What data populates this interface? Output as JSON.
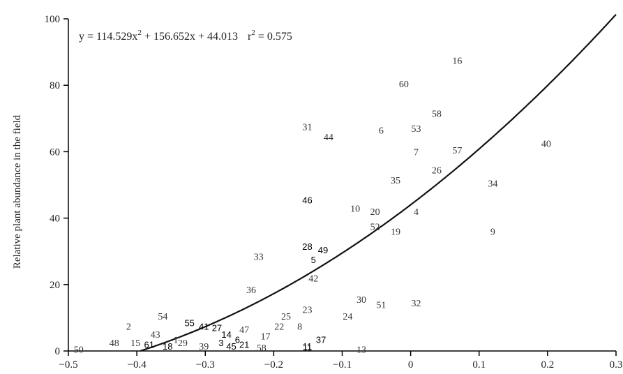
{
  "chart_data": {
    "type": "scatter",
    "title": "",
    "xlabel": "",
    "ylabel": "Relative plant abundance in the field",
    "xlim": [
      -0.5,
      0.3
    ],
    "ylim": [
      0,
      100
    ],
    "x_ticks": [
      -0.5,
      -0.4,
      -0.3,
      -0.2,
      -0.1,
      0,
      0.1,
      0.2,
      0.3
    ],
    "x_tick_labels": [
      "−0.5",
      "−0.4",
      "−0.3",
      "−0.2",
      "−0.1",
      "0",
      "0.1",
      "0.2",
      "0.3"
    ],
    "y_ticks": [
      0,
      20,
      40,
      60,
      80,
      100
    ],
    "y_tick_labels": [
      "0",
      "20",
      "40",
      "60",
      "80",
      "100"
    ],
    "grid": false,
    "marker": "point labels (numbers)",
    "fit": {
      "type": "quadratic",
      "coefficients": [
        114.529,
        156.652,
        44.013
      ],
      "equation_text": "y = 114.529x",
      "equation_sup": "2",
      "equation_rest": " + 156.652x + 44.013",
      "r2_label": "r",
      "r2_sup": "2",
      "r2_value": " = 0.575"
    },
    "points": [
      {
        "label": "16",
        "x": 0.068,
        "y": 87.5
      },
      {
        "label": "60",
        "x": -0.01,
        "y": 80.5
      },
      {
        "label": "58",
        "x": 0.038,
        "y": 71.5
      },
      {
        "label": "31",
        "x": -0.151,
        "y": 67.5
      },
      {
        "label": "6",
        "x": -0.043,
        "y": 66.5
      },
      {
        "label": "53",
        "x": 0.008,
        "y": 67.0
      },
      {
        "label": "44",
        "x": -0.12,
        "y": 64.5
      },
      {
        "label": "40",
        "x": 0.198,
        "y": 62.5
      },
      {
        "label": "7",
        "x": 0.008,
        "y": 60.0
      },
      {
        "label": "57",
        "x": 0.068,
        "y": 60.5
      },
      {
        "label": "26",
        "x": 0.038,
        "y": 54.5
      },
      {
        "label": "35",
        "x": -0.022,
        "y": 51.5
      },
      {
        "label": "34",
        "x": 0.12,
        "y": 50.5
      },
      {
        "label": "46",
        "x": -0.151,
        "y": 45.5,
        "style": "sans"
      },
      {
        "label": "10",
        "x": -0.081,
        "y": 43.0
      },
      {
        "label": "20",
        "x": -0.052,
        "y": 42.0
      },
      {
        "label": "4",
        "x": 0.008,
        "y": 42.0
      },
      {
        "label": "52",
        "x": -0.052,
        "y": 37.5
      },
      {
        "label": "19",
        "x": -0.022,
        "y": 36.0
      },
      {
        "label": "9",
        "x": 0.12,
        "y": 36.0
      },
      {
        "label": "28",
        "x": -0.151,
        "y": 31.5,
        "style": "sans"
      },
      {
        "label": "49",
        "x": -0.128,
        "y": 30.5,
        "style": "sans"
      },
      {
        "label": "33",
        "x": -0.222,
        "y": 28.5
      },
      {
        "label": "5",
        "x": -0.142,
        "y": 27.5,
        "style": "sans"
      },
      {
        "label": "42",
        "x": -0.142,
        "y": 22.0
      },
      {
        "label": "36",
        "x": -0.233,
        "y": 18.5
      },
      {
        "label": "30",
        "x": -0.072,
        "y": 15.5
      },
      {
        "label": "51",
        "x": -0.043,
        "y": 14.0
      },
      {
        "label": "32",
        "x": 0.008,
        "y": 14.5
      },
      {
        "label": "23",
        "x": -0.151,
        "y": 12.5
      },
      {
        "label": "24",
        "x": -0.092,
        "y": 10.5
      },
      {
        "label": "54",
        "x": -0.362,
        "y": 10.5
      },
      {
        "label": "25",
        "x": -0.182,
        "y": 10.5
      },
      {
        "label": "55",
        "x": -0.323,
        "y": 8.5,
        "style": "sans"
      },
      {
        "label": "41",
        "x": -0.302,
        "y": 7.5,
        "style": "sans"
      },
      {
        "label": "27",
        "x": -0.283,
        "y": 7.0,
        "style": "sans"
      },
      {
        "label": "2",
        "x": -0.412,
        "y": 7.5
      },
      {
        "label": "22",
        "x": -0.192,
        "y": 7.5
      },
      {
        "label": "8",
        "x": -0.162,
        "y": 7.5
      },
      {
        "label": "47",
        "x": -0.243,
        "y": 6.5
      },
      {
        "label": "14",
        "x": -0.269,
        "y": 5.0,
        "style": "sans"
      },
      {
        "label": "17",
        "x": -0.212,
        "y": 4.5
      },
      {
        "label": "43",
        "x": -0.373,
        "y": 5.0
      },
      {
        "label": "6",
        "x": -0.253,
        "y": 3.5,
        "style": "sans"
      },
      {
        "label": "37",
        "x": -0.131,
        "y": 3.5,
        "style": "sans"
      },
      {
        "label": "1",
        "x": -0.343,
        "y": 3.5
      },
      {
        "label": "48",
        "x": -0.433,
        "y": 2.5
      },
      {
        "label": "15",
        "x": -0.402,
        "y": 2.5
      },
      {
        "label": "61",
        "x": -0.382,
        "y": 2.0,
        "style": "sans"
      },
      {
        "label": "29",
        "x": -0.333,
        "y": 2.5
      },
      {
        "label": "18",
        "x": -0.355,
        "y": 1.5,
        "style": "sans"
      },
      {
        "label": "3",
        "x": -0.277,
        "y": 2.5,
        "style": "sans"
      },
      {
        "label": "21",
        "x": -0.243,
        "y": 2.0,
        "style": "sans"
      },
      {
        "label": "45",
        "x": -0.262,
        "y": 1.5,
        "style": "sans"
      },
      {
        "label": "11",
        "x": -0.151,
        "y": 1.5,
        "style": "sans"
      },
      {
        "label": "39",
        "x": -0.302,
        "y": 1.5
      },
      {
        "label": "58",
        "x": -0.218,
        "y": 1.0
      },
      {
        "label": "11",
        "x": -0.151,
        "y": 1.0,
        "style": "sans"
      },
      {
        "label": "13",
        "x": -0.072,
        "y": 0.5
      },
      {
        "label": "50",
        "x": -0.485,
        "y": 0.5
      }
    ]
  }
}
